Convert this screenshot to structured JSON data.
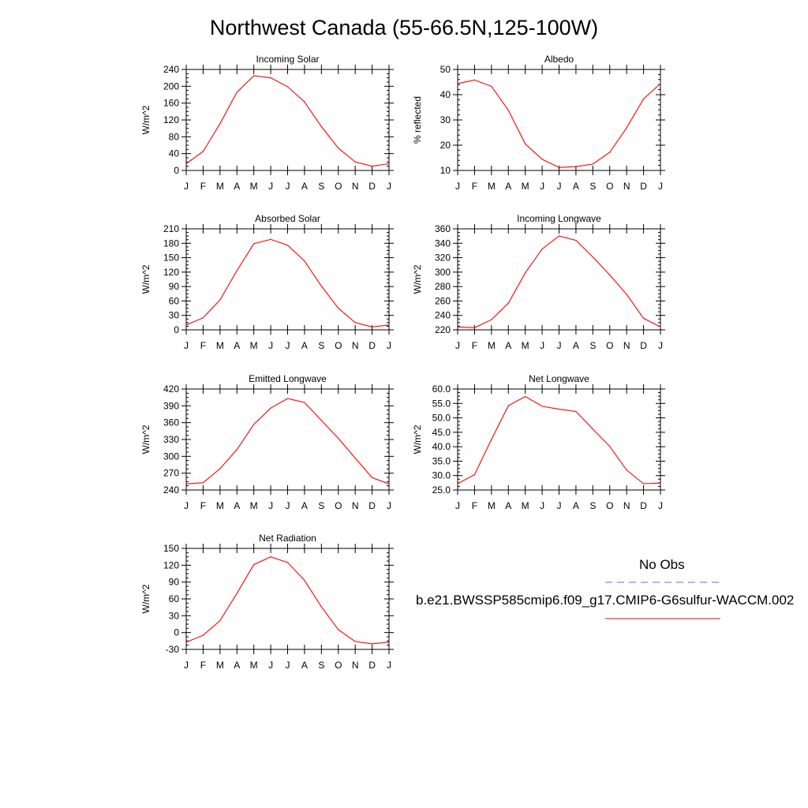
{
  "title": "Northwest Canada (55-66.5N,125-100W)",
  "colors": {
    "model": "#ff0000",
    "obs": "#6666ff",
    "axis": "#000000"
  },
  "legend": {
    "obs_label": "No Obs",
    "model_label": "b.e21.BWSSP585cmip6.f09_g17.CMIP6-G6sulfur-WACCM.002"
  },
  "chart_data": [
    {
      "type": "line",
      "title": "Incoming Solar",
      "ylabel": "W/m^2",
      "categories": [
        "J",
        "F",
        "M",
        "A",
        "M",
        "J",
        "J",
        "A",
        "S",
        "O",
        "N",
        "D",
        "J"
      ],
      "ylim": [
        0,
        240
      ],
      "yticks": [
        "0",
        "40",
        "80",
        "120",
        "160",
        "200",
        "240"
      ],
      "values": [
        16,
        45,
        111,
        186,
        225,
        220,
        199,
        163,
        104,
        53,
        20,
        10,
        16
      ]
    },
    {
      "type": "line",
      "title": "Albedo",
      "ylabel": "% reflected",
      "categories": [
        "J",
        "F",
        "M",
        "A",
        "M",
        "J",
        "J",
        "A",
        "S",
        "O",
        "N",
        "D",
        "J"
      ],
      "ylim": [
        10,
        50
      ],
      "yticks": [
        "10",
        "20",
        "30",
        "40",
        "50"
      ],
      "values": [
        44.4,
        45.8,
        43.3,
        33.8,
        20.5,
        14.4,
        11.2,
        11.5,
        12.5,
        17.2,
        26.9,
        38.3,
        44.4
      ]
    },
    {
      "type": "line",
      "title": "Absorbed Solar",
      "ylabel": "W/m^2",
      "categories": [
        "J",
        "F",
        "M",
        "A",
        "M",
        "J",
        "J",
        "A",
        "S",
        "O",
        "N",
        "D",
        "J"
      ],
      "ylim": [
        0,
        210
      ],
      "yticks": [
        "0",
        "30",
        "60",
        "90",
        "120",
        "150",
        "180",
        "210"
      ],
      "values": [
        10,
        25,
        62,
        123,
        179,
        188,
        176,
        143,
        91,
        45,
        15,
        6,
        10
      ]
    },
    {
      "type": "line",
      "title": "Incoming Longwave",
      "ylabel": "W/m^2",
      "categories": [
        "J",
        "F",
        "M",
        "A",
        "M",
        "J",
        "J",
        "A",
        "S",
        "O",
        "N",
        "D",
        "J"
      ],
      "ylim": [
        220,
        360
      ],
      "yticks": [
        "220",
        "240",
        "260",
        "280",
        "300",
        "320",
        "340",
        "360"
      ],
      "values": [
        224,
        223,
        234,
        257,
        299,
        332,
        350,
        344,
        321,
        296,
        269,
        236,
        224
      ]
    },
    {
      "type": "line",
      "title": "Emitted Longwave",
      "ylabel": "W/m^2",
      "categories": [
        "J",
        "F",
        "M",
        "A",
        "M",
        "J",
        "J",
        "A",
        "S",
        "O",
        "N",
        "D",
        "J"
      ],
      "ylim": [
        240,
        420
      ],
      "yticks": [
        "240",
        "270",
        "300",
        "330",
        "360",
        "390",
        "420"
      ],
      "values": [
        251,
        253,
        278,
        312,
        357,
        386,
        403,
        396,
        364,
        332,
        297,
        262,
        251
      ]
    },
    {
      "type": "line",
      "title": "Net Longwave",
      "ylabel": "W/m^2",
      "categories": [
        "J",
        "F",
        "M",
        "A",
        "M",
        "J",
        "J",
        "A",
        "S",
        "O",
        "N",
        "D",
        "J"
      ],
      "ylim": [
        25,
        60
      ],
      "yticks": [
        "25.0",
        "30.0",
        "35.0",
        "40.0",
        "45.0",
        "50.0",
        "55.0",
        "60.0"
      ],
      "values": [
        27.2,
        30.3,
        42.5,
        54.2,
        57.4,
        54,
        53,
        52.2,
        46.1,
        40.1,
        31.9,
        27.2,
        27.4
      ]
    },
    {
      "type": "line",
      "title": "Net Radiation",
      "ylabel": "W/m^2",
      "categories": [
        "J",
        "F",
        "M",
        "A",
        "M",
        "J",
        "J",
        "A",
        "S",
        "O",
        "N",
        "D",
        "J"
      ],
      "ylim": [
        -30,
        150
      ],
      "yticks": [
        "-30",
        "0",
        "30",
        "60",
        "90",
        "120",
        "150"
      ],
      "values": [
        -17,
        -5,
        21,
        70,
        121,
        135,
        125,
        93,
        46,
        5,
        -16,
        -20,
        -17
      ]
    }
  ]
}
